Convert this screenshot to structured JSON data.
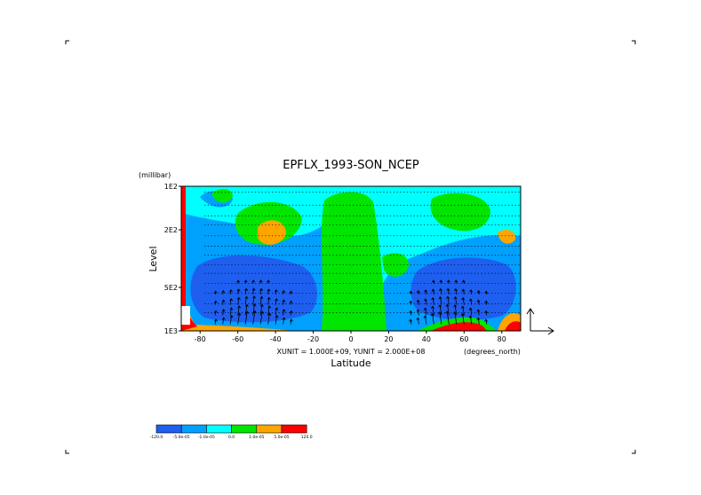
{
  "chart_data": {
    "type": "heatmap",
    "title": "EPFLX_1993-SON_NCEP",
    "xlabel": "Latitude",
    "ylabel": "Level",
    "x_unit": "(degrees_north)",
    "y_unit": "(millibar)",
    "xlim": [
      -90,
      90
    ],
    "ylim": [
      1000,
      100
    ],
    "y_scale": "log",
    "x_ticks": [
      {
        "value": -80,
        "label": "-80"
      },
      {
        "value": -60,
        "label": "-60"
      },
      {
        "value": -40,
        "label": "-40"
      },
      {
        "value": -20,
        "label": "-20"
      },
      {
        "value": 0,
        "label": "0"
      },
      {
        "value": 20,
        "label": "20"
      },
      {
        "value": 40,
        "label": "40"
      },
      {
        "value": 60,
        "label": "60"
      },
      {
        "value": 80,
        "label": "80"
      }
    ],
    "y_ticks": [
      {
        "value": 100,
        "label": "1E2"
      },
      {
        "value": 200,
        "label": "2E2"
      },
      {
        "value": 500,
        "label": "5E2"
      },
      {
        "value": 1000,
        "label": "1E3"
      }
    ],
    "vector_units": "XUNIT = 1.000E+09,  YUNIT = 2.000E+08",
    "colorbar": {
      "colors": [
        "#1e5ff0",
        "#00a0ff",
        "#00ffff",
        "#00e600",
        "#ffa500",
        "#ff0000"
      ],
      "labels": [
        "-120.0",
        "-5.0e-05",
        "-1.0e-05",
        "0.0",
        "1.0e-05",
        "5.0e-05",
        "120.0"
      ]
    },
    "colors": {
      "background": "#00ffff",
      "strong_negative": "#1e5ff0",
      "moderate_negative": "#00a0ff",
      "weak_positive": "#00e600",
      "moderate_positive": "#ffa500",
      "strong_positive": "#ff0000",
      "vectors": "#000000"
    }
  }
}
